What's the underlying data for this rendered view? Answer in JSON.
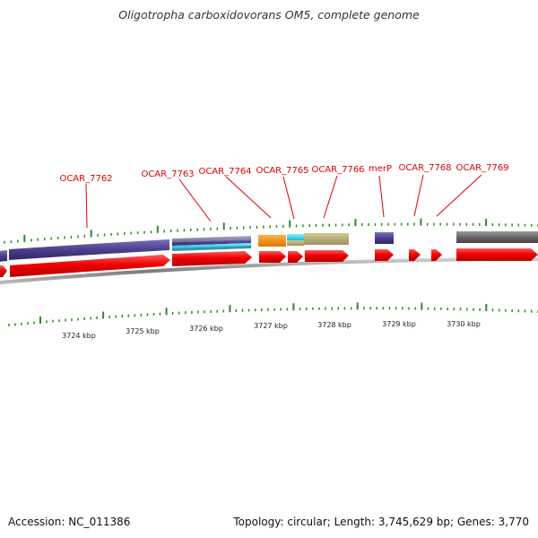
{
  "title": "Oligotropha carboxidovorans OM5, complete genome",
  "footer": {
    "accession": "Accession: NC_011386",
    "summary": "Topology: circular; Length: 3,745,629 bp; Genes: 3,770"
  },
  "colors": {
    "background": "#ffffff",
    "backbone": "#8a8a8a",
    "tick": "#2e8b22",
    "label": "#dd0000",
    "cds_arrow": "#ee0000",
    "cog_purple": "#4b3f8c",
    "cog_gray": "#666666",
    "cog_orange": "#f08c00",
    "cog_cyan": "#22ccee",
    "cog_khaki": "#b7ad78",
    "cog_slate": "#8d8ba8"
  },
  "axis": {
    "unit": "kbp",
    "tick_labels": [
      "3724 kbp",
      "3725 kbp",
      "3726 kbp",
      "3727 kbp",
      "3728 kbp",
      "3729 kbp",
      "3730 kbp"
    ]
  },
  "genes": [
    {
      "label": "OCAR_7762"
    },
    {
      "label": "OCAR_7763"
    },
    {
      "label": "OCAR_7764"
    },
    {
      "label": "OCAR_7765"
    },
    {
      "label": "OCAR_7766"
    },
    {
      "label": "merP"
    },
    {
      "label": "OCAR_7768"
    },
    {
      "label": "OCAR_7769"
    }
  ]
}
